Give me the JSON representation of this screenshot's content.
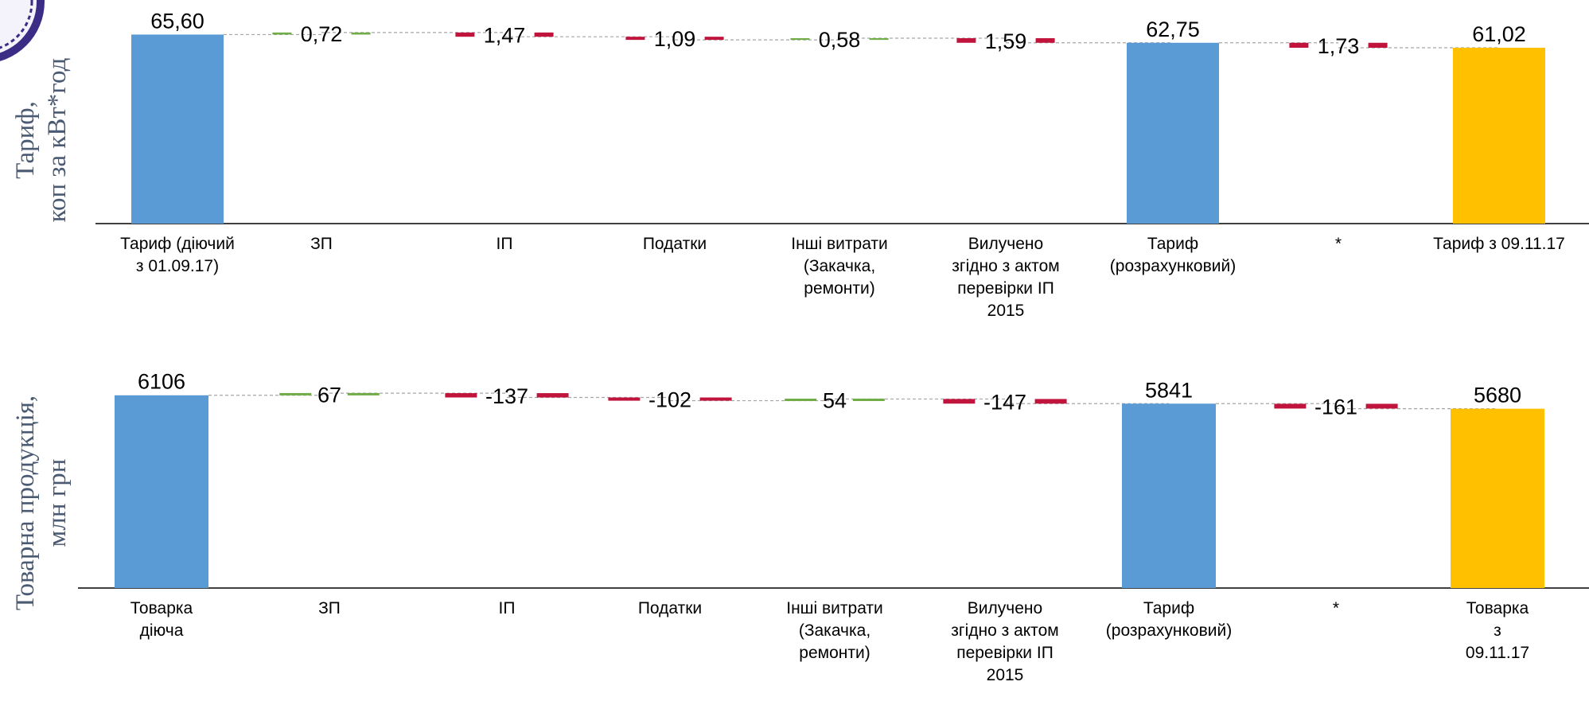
{
  "colors": {
    "total_blue": "#5b9bd5",
    "final_gold": "#ffc000",
    "increase_green": "#70ad47",
    "decrease_red": "#c0143c",
    "connector": "#a6a6a6",
    "axis_title": "#4a5a73"
  },
  "chart_data": [
    {
      "type": "bar",
      "subtype": "waterfall",
      "ylabel_lines": [
        "Тариф,",
        "коп за кВт*год"
      ],
      "categories": [
        [
          "Тариф (діючий",
          "з 01.09.17)"
        ],
        [
          "ЗП"
        ],
        [
          "ІП"
        ],
        [
          "Податки"
        ],
        [
          "Інші витрати",
          "(Закачка,",
          "ремонти)"
        ],
        [
          "Вилучено",
          "згідно з актом",
          "перевірки ІП",
          "2015"
        ],
        [
          "Тариф",
          "(розрахунковий)"
        ],
        [
          "*"
        ],
        [
          "Тариф з 09.11.17"
        ]
      ],
      "values": [
        65.6,
        0.72,
        -1.47,
        -1.09,
        0.58,
        -1.59,
        62.75,
        -1.73,
        61.02
      ],
      "labels": [
        "65,60",
        "0,72",
        "1,47",
        "1,09",
        "0,58",
        "1,59",
        "62,75",
        "1,73",
        "61,02"
      ],
      "kinds": [
        "total",
        "delta",
        "delta",
        "delta",
        "delta",
        "delta",
        "total",
        "delta",
        "final"
      ],
      "ylim": [
        0,
        66
      ]
    },
    {
      "type": "bar",
      "subtype": "waterfall",
      "ylabel_lines": [
        "Товарна продукція,",
        "млн грн"
      ],
      "categories": [
        [
          "Товарка",
          "діюча"
        ],
        [
          "ЗП"
        ],
        [
          "ІП"
        ],
        [
          "Податки"
        ],
        [
          "Інші витрати",
          "(Закачка,",
          "ремонти)"
        ],
        [
          "Вилучено",
          "згідно з актом",
          "перевірки ІП",
          "2015"
        ],
        [
          "Тариф",
          "(розрахунковий)"
        ],
        [
          "*"
        ],
        [
          "Товарка",
          "з",
          "09.11.17"
        ]
      ],
      "values": [
        6106,
        67,
        -137,
        -102,
        54,
        -147,
        5841,
        -161,
        5680
      ],
      "labels": [
        "6106",
        "67",
        "-137",
        "-102",
        "54",
        "-147",
        "5841",
        "-161",
        "5680"
      ],
      "kinds": [
        "total",
        "delta",
        "delta",
        "delta",
        "delta",
        "delta",
        "total",
        "delta",
        "final"
      ],
      "ylim": [
        0,
        6150
      ]
    }
  ]
}
